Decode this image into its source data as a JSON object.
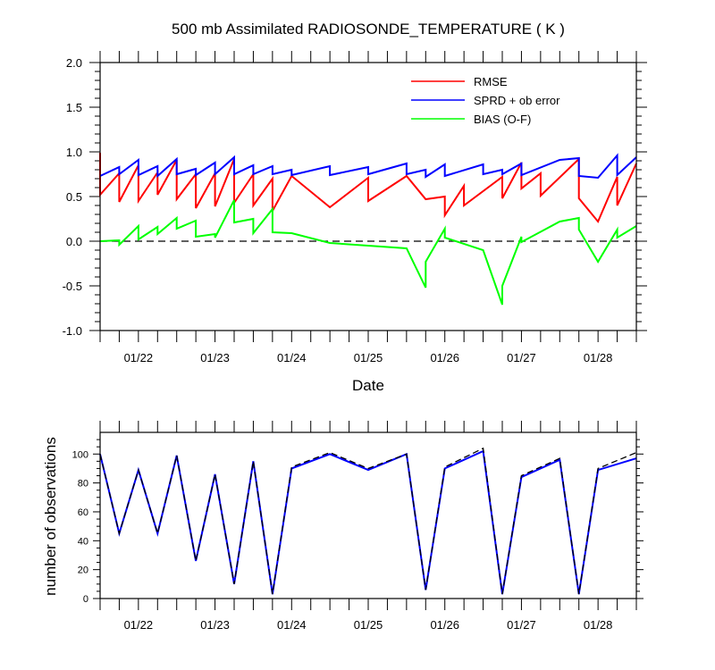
{
  "chart_data": [
    {
      "type": "line",
      "title": "500 mb Assimilated RADIOSONDE_TEMPERATURE ( K )",
      "xlabel": "Date",
      "ylabel": "",
      "xticklabels": [
        "01/22",
        "01/23",
        "01/24",
        "01/25",
        "01/26",
        "01/27",
        "01/28"
      ],
      "yticklabels": [
        "2.0",
        "1.5",
        "1.0",
        "0.5",
        "0.0",
        "-0.5",
        "-1.0"
      ],
      "ylim": [
        -1.0,
        2.0
      ],
      "xlim": [
        0,
        7
      ],
      "legend_position": "top-right",
      "zero_line": true,
      "series": [
        {
          "name": "RMSE",
          "color": "#ff0000",
          "points": [
            [
              0,
              0.99
            ],
            [
              0,
              0.52
            ],
            [
              0.25,
              0.76
            ],
            [
              0.25,
              0.44
            ],
            [
              0.5,
              0.85
            ],
            [
              0.5,
              0.45
            ],
            [
              0.75,
              0.77
            ],
            [
              0.75,
              0.52
            ],
            [
              1.0,
              0.91
            ],
            [
              1.0,
              0.47
            ],
            [
              1.25,
              0.75
            ],
            [
              1.25,
              0.37
            ],
            [
              1.5,
              0.76
            ],
            [
              1.5,
              0.39
            ],
            [
              1.75,
              0.92
            ],
            [
              1.75,
              0.43
            ],
            [
              2.0,
              0.75
            ],
            [
              2.0,
              0.4
            ],
            [
              2.25,
              0.7
            ],
            [
              2.25,
              0.34
            ],
            [
              2.5,
              0.73
            ],
            [
              3.0,
              0.38
            ],
            [
              3.5,
              0.71
            ],
            [
              3.5,
              0.45
            ],
            [
              4.0,
              0.73
            ],
            [
              4.25,
              0.47
            ],
            [
              4.5,
              0.5
            ],
            [
              4.5,
              0.29
            ],
            [
              4.75,
              0.62
            ],
            [
              4.75,
              0.4
            ],
            [
              5.25,
              0.72
            ],
            [
              5.25,
              0.48
            ],
            [
              5.5,
              0.88
            ],
            [
              5.5,
              0.59
            ],
            [
              5.75,
              0.76
            ],
            [
              5.75,
              0.51
            ],
            [
              6.25,
              0.92
            ],
            [
              6.25,
              0.48
            ],
            [
              6.5,
              0.22
            ],
            [
              6.75,
              0.72
            ],
            [
              6.75,
              0.4
            ],
            [
              7.0,
              0.87
            ]
          ]
        },
        {
          "name": "SPRD + ob error",
          "color": "#0000ff",
          "points": [
            [
              0,
              0.73
            ],
            [
              0.25,
              0.83
            ],
            [
              0.25,
              0.75
            ],
            [
              0.5,
              0.91
            ],
            [
              0.5,
              0.74
            ],
            [
              0.75,
              0.84
            ],
            [
              0.75,
              0.73
            ],
            [
              1.0,
              0.92
            ],
            [
              1.0,
              0.75
            ],
            [
              1.25,
              0.81
            ],
            [
              1.25,
              0.74
            ],
            [
              1.5,
              0.88
            ],
            [
              1.5,
              0.75
            ],
            [
              1.75,
              0.94
            ],
            [
              1.75,
              0.75
            ],
            [
              2.0,
              0.85
            ],
            [
              2.0,
              0.75
            ],
            [
              2.25,
              0.84
            ],
            [
              2.25,
              0.75
            ],
            [
              2.5,
              0.8
            ],
            [
              2.5,
              0.74
            ],
            [
              3.0,
              0.84
            ],
            [
              3.0,
              0.74
            ],
            [
              3.5,
              0.83
            ],
            [
              3.5,
              0.75
            ],
            [
              4.0,
              0.87
            ],
            [
              4.0,
              0.75
            ],
            [
              4.25,
              0.8
            ],
            [
              4.25,
              0.72
            ],
            [
              4.5,
              0.86
            ],
            [
              4.5,
              0.73
            ],
            [
              5.0,
              0.86
            ],
            [
              5.0,
              0.75
            ],
            [
              5.25,
              0.8
            ],
            [
              5.25,
              0.75
            ],
            [
              5.5,
              0.87
            ],
            [
              5.5,
              0.74
            ],
            [
              6.0,
              0.91
            ],
            [
              6.25,
              0.93
            ],
            [
              6.25,
              0.73
            ],
            [
              6.5,
              0.71
            ],
            [
              6.75,
              0.96
            ],
            [
              6.75,
              0.74
            ],
            [
              7.0,
              0.94
            ]
          ]
        },
        {
          "name": "BIAS (O-F)",
          "color": "#00ff00",
          "points": [
            [
              0,
              0.0
            ],
            [
              0.25,
              0.01
            ],
            [
              0.25,
              -0.04
            ],
            [
              0.5,
              0.17
            ],
            [
              0.5,
              0.02
            ],
            [
              0.75,
              0.16
            ],
            [
              0.75,
              0.08
            ],
            [
              1.0,
              0.26
            ],
            [
              1.0,
              0.14
            ],
            [
              1.25,
              0.23
            ],
            [
              1.25,
              0.05
            ],
            [
              1.5,
              0.08
            ],
            [
              1.5,
              0.04
            ],
            [
              1.75,
              0.46
            ],
            [
              1.75,
              0.21
            ],
            [
              2.0,
              0.25
            ],
            [
              2.0,
              0.09
            ],
            [
              2.25,
              0.36
            ],
            [
              2.25,
              0.1
            ],
            [
              2.5,
              0.09
            ],
            [
              3.0,
              -0.02
            ],
            [
              3.5,
              -0.05
            ],
            [
              4.0,
              -0.08
            ],
            [
              4.25,
              -0.52
            ],
            [
              4.25,
              -0.23
            ],
            [
              4.5,
              0.14
            ],
            [
              4.5,
              0.04
            ],
            [
              5.0,
              -0.1
            ],
            [
              5.25,
              -0.71
            ],
            [
              5.25,
              -0.5
            ],
            [
              5.5,
              0.05
            ],
            [
              5.5,
              -0.01
            ],
            [
              6.0,
              0.22
            ],
            [
              6.25,
              0.26
            ],
            [
              6.25,
              0.13
            ],
            [
              6.5,
              -0.23
            ],
            [
              6.75,
              0.13
            ],
            [
              6.75,
              0.04
            ],
            [
              7.0,
              0.17
            ]
          ]
        }
      ]
    },
    {
      "type": "line",
      "title": "",
      "xlabel": "",
      "ylabel": "number of observations",
      "xticklabels": [
        "01/22",
        "01/23",
        "01/24",
        "01/25",
        "01/26",
        "01/27",
        "01/28"
      ],
      "yticklabels": [
        "100",
        "80",
        "60",
        "40",
        "20",
        "0"
      ],
      "ylim": [
        0,
        115
      ],
      "xlim": [
        0,
        7
      ],
      "series": [
        {
          "style": "solid",
          "color": "#0000ff",
          "points": [
            [
              0,
              100
            ],
            [
              0.25,
              45
            ],
            [
              0.5,
              89
            ],
            [
              0.75,
              45
            ],
            [
              1.0,
              99
            ],
            [
              1.25,
              26
            ],
            [
              1.5,
              86
            ],
            [
              1.75,
              10
            ],
            [
              2.0,
              95
            ],
            [
              2.25,
              3
            ],
            [
              2.5,
              90
            ],
            [
              3.0,
              100
            ],
            [
              3.5,
              89
            ],
            [
              4.0,
              100
            ],
            [
              4.25,
              6
            ],
            [
              4.5,
              90
            ],
            [
              5.0,
              102
            ],
            [
              5.25,
              3
            ],
            [
              5.5,
              84
            ],
            [
              6.0,
              96
            ],
            [
              6.25,
              3
            ],
            [
              6.5,
              89
            ],
            [
              7.0,
              97
            ]
          ]
        },
        {
          "style": "dashed",
          "color": "#000000",
          "points": [
            [
              0,
              100
            ],
            [
              0.25,
              45
            ],
            [
              0.5,
              89
            ],
            [
              0.75,
              45
            ],
            [
              1.0,
              99
            ],
            [
              1.25,
              26
            ],
            [
              1.5,
              86
            ],
            [
              1.75,
              10
            ],
            [
              2.0,
              95
            ],
            [
              2.25,
              3
            ],
            [
              2.5,
              91
            ],
            [
              3.0,
              101
            ],
            [
              3.5,
              90
            ],
            [
              4.0,
              100
            ],
            [
              4.25,
              6
            ],
            [
              4.5,
              91
            ],
            [
              5.0,
              104
            ],
            [
              5.25,
              3
            ],
            [
              5.5,
              85
            ],
            [
              6.0,
              97
            ],
            [
              6.25,
              3
            ],
            [
              6.5,
              90
            ],
            [
              7.0,
              101
            ]
          ]
        }
      ]
    }
  ]
}
